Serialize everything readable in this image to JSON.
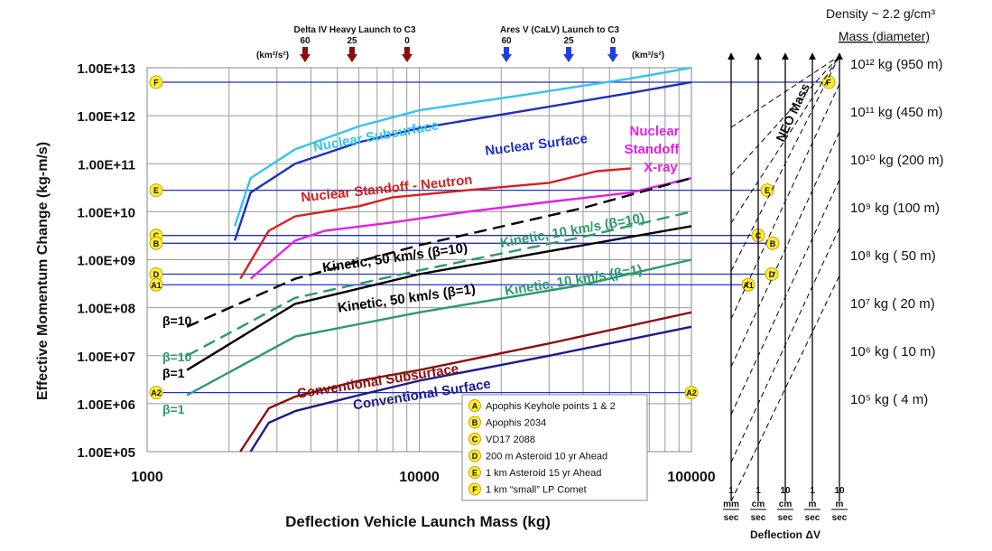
{
  "chart_data": {
    "type": "line",
    "xscale": "log",
    "yscale": "log",
    "xlim": [
      1000,
      100000
    ],
    "ylim": [
      100000,
      10000000000000
    ],
    "xlabel": "Deflection Vehicle Launch Mass (kg)",
    "ylabel": "Effective Momentum Change (kg-m/s)",
    "x_ticks": [
      "1000",
      "10000",
      "100000"
    ],
    "y_ticks": [
      "1.00E+05",
      "1.00E+06",
      "1.00E+07",
      "1.00E+08",
      "1.00E+09",
      "1.00E+10",
      "1.00E+11",
      "1.00E+12",
      "1.00E+13"
    ],
    "grid": true,
    "series": [
      {
        "name": "Nuclear Subsurface",
        "color": "#33c4ec",
        "dash": "solid",
        "points": [
          [
            2100,
            5000000000.0
          ],
          [
            2400,
            50000000000.0
          ],
          [
            3500,
            200000000000.0
          ],
          [
            6000,
            600000000000.0
          ],
          [
            10000,
            1300000000000.0
          ],
          [
            25000,
            2800000000000.0
          ],
          [
            60000,
            6000000000000.0
          ],
          [
            100000,
            10000000000000.0
          ]
        ]
      },
      {
        "name": "Nuclear Surface",
        "color": "#1c2fbf",
        "dash": "solid",
        "points": [
          [
            2100,
            2500000000.0
          ],
          [
            2400,
            25000000000.0
          ],
          [
            3500,
            100000000000.0
          ],
          [
            6000,
            280000000000.0
          ],
          [
            10000,
            550000000000.0
          ],
          [
            25000,
            1300000000000.0
          ],
          [
            60000,
            3000000000000.0
          ],
          [
            100000,
            5000000000000.0
          ]
        ]
      },
      {
        "name": "Nuclear Standoff - Neutron",
        "color": "#d6201f",
        "dash": "solid",
        "points": [
          [
            2200,
            400000000.0
          ],
          [
            2800,
            4000000000.0
          ],
          [
            3500,
            8000000000.0
          ],
          [
            6000,
            13000000000.0
          ],
          [
            8000,
            20000000000.0
          ],
          [
            15000,
            28000000000.0
          ],
          [
            30000,
            40000000000.0
          ],
          [
            45000,
            70000000000.0
          ],
          [
            60000,
            80000000000.0
          ]
        ]
      },
      {
        "name": "Nuclear Standoff X-ray",
        "color": "#e11fe6",
        "dash": "solid",
        "points": [
          [
            2400,
            400000000.0
          ],
          [
            3500,
            2500000000.0
          ],
          [
            4500,
            4000000000.0
          ],
          [
            8000,
            6000000000.0
          ],
          [
            15000,
            10000000000.0
          ],
          [
            30000,
            16000000000.0
          ],
          [
            60000,
            25000000000.0
          ],
          [
            100000,
            50000000000.0
          ]
        ]
      },
      {
        "name": "Kinetic, 50 km/s (β=10)",
        "color": "#000000",
        "dash": "dashed",
        "points": [
          [
            1400,
            40000000.0
          ],
          [
            3500,
            400000000.0
          ],
          [
            10000,
            2000000000.0
          ],
          [
            40000,
            12000000000.0
          ],
          [
            100000,
            50000000000.0
          ]
        ]
      },
      {
        "name": "Kinetic, 10 km/s (β=10)",
        "color": "#2c9a6a",
        "dash": "dashed",
        "points": [
          [
            1400,
            10000000.0
          ],
          [
            3500,
            160000000.0
          ],
          [
            10000,
            600000000.0
          ],
          [
            40000,
            3000000000.0
          ],
          [
            100000,
            10000000000.0
          ]
        ]
      },
      {
        "name": "Kinetic, 50 km/s (β=1)",
        "color": "#000000",
        "dash": "solid",
        "points": [
          [
            1400,
            5000000.0
          ],
          [
            3500,
            120000000.0
          ],
          [
            10000,
            500000000.0
          ],
          [
            40000,
            2000000000.0
          ],
          [
            100000,
            5000000000.0
          ]
        ]
      },
      {
        "name": "Kinetic, 10 km/s (β=1)",
        "color": "#2c9a6a",
        "dash": "solid",
        "points": [
          [
            1400,
            1500000.0
          ],
          [
            3500,
            25000000.0
          ],
          [
            10000,
            80000000.0
          ],
          [
            40000,
            300000000.0
          ],
          [
            100000,
            1000000000.0
          ]
        ]
      },
      {
        "name": "Conventional Subsurface",
        "color": "#8b0d0d",
        "dash": "solid",
        "points": [
          [
            2200,
            100000.0
          ],
          [
            2800,
            800000.0
          ],
          [
            3500,
            1400000.0
          ],
          [
            6000,
            3000000.0
          ],
          [
            10000,
            5000000.0
          ],
          [
            30000,
            18000000.0
          ],
          [
            100000,
            80000000.0
          ]
        ]
      },
      {
        "name": "Conventional Surface",
        "color": "#1d1a8a",
        "dash": "solid",
        "points": [
          [
            2400,
            100000.0
          ],
          [
            2800,
            400000.0
          ],
          [
            3500,
            700000.0
          ],
          [
            6000,
            1500000.0
          ],
          [
            10000,
            3000000.0
          ],
          [
            30000,
            10000000.0
          ],
          [
            100000,
            40000000.0
          ]
        ]
      }
    ],
    "thresholds": [
      {
        "id": "F",
        "y": 5000000000000.0
      },
      {
        "id": "E",
        "y": 28000000000.0
      },
      {
        "id": "C",
        "y": 3200000000.0
      },
      {
        "id": "B",
        "y": 2200000000.0
      },
      {
        "id": "D",
        "y": 500000000.0
      },
      {
        "id": "A1",
        "y": 300000000.0
      },
      {
        "id": "A2",
        "y": 1700000.0
      }
    ],
    "beta_labels": [
      {
        "text": "β=10",
        "color": "#000000",
        "y": 40000000.0
      },
      {
        "text": "β=10",
        "color": "#2c9a6a",
        "y": 10000000.0
      },
      {
        "text": "β=1",
        "color": "#000000",
        "y": 5000000.0
      },
      {
        "text": "β=1",
        "color": "#2c9a6a",
        "y": 1500000.0
      }
    ],
    "top_launch_markers": [
      {
        "title": "Delta IV Heavy Launch to C3",
        "color": "#8b0d0d",
        "values": [
          "60",
          "25",
          "0"
        ]
      },
      {
        "title": "Ares V (CaLV) Launch to C3",
        "color": "#1f3fe0",
        "values": [
          "60",
          "25",
          "0"
        ]
      }
    ],
    "c3_unit": "(km²/s²)",
    "legend": [
      {
        "key": "A",
        "text": "Apophis Keyhole points 1 & 2"
      },
      {
        "key": "B",
        "text": "Apophis 2034"
      },
      {
        "key": "C",
        "text": "VD17 2088"
      },
      {
        "key": "D",
        "text": "200 m Asteroid 10 yr Ahead"
      },
      {
        "key": "E",
        "text": "1 km Asteroid 15 yr Ahead"
      },
      {
        "key": "F",
        "text": "1 km “small” LP Comet"
      }
    ],
    "density_text": "Density ~ 2.2 g/cm³",
    "mass_header": "Mass (diameter)",
    "mass_labels": [
      {
        "exp": "12",
        "text": "10¹² kg (950 m)"
      },
      {
        "exp": "11",
        "text": "10¹¹ kg (450 m)"
      },
      {
        "exp": "10",
        "text": "10¹⁰ kg (200 m)"
      },
      {
        "exp": "9",
        "text": "10⁹ kg (100 m)"
      },
      {
        "exp": "8",
        "text": "10⁸ kg (  50 m)"
      },
      {
        "exp": "7",
        "text": "10⁷ kg (  20 m)"
      },
      {
        "exp": "6",
        "text": "10⁶ kg (  10 m)"
      },
      {
        "exp": "5",
        "text": "10⁵ kg (    4 m)"
      }
    ],
    "neo_mass_label": "NEO Mass",
    "deflection_dv": [
      {
        "top": "1",
        "bottom": "mm",
        "unit": "sec"
      },
      {
        "top": "1",
        "bottom": "cm",
        "unit": "sec"
      },
      {
        "top": "10",
        "bottom": "cm",
        "unit": "sec"
      },
      {
        "top": "1",
        "bottom": "m",
        "unit": "sec"
      },
      {
        "top": "10",
        "bottom": "m",
        "unit": "sec"
      }
    ],
    "deflection_dv_label": "Deflection ΔV"
  }
}
